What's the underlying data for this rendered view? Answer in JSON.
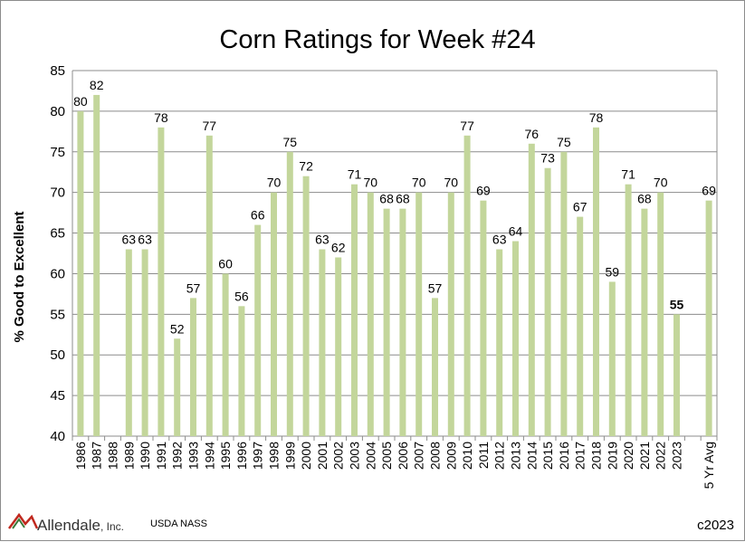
{
  "chart_data": {
    "type": "bar",
    "title": "Corn Ratings for Week #24",
    "xlabel": "",
    "ylabel": "% Good to Excellent",
    "ylim": [
      40,
      85
    ],
    "yticks": [
      40,
      45,
      50,
      55,
      60,
      65,
      70,
      75,
      80,
      85
    ],
    "grid": true,
    "legend": "none",
    "bar_color": "#c3d69b",
    "categories": [
      "1986",
      "1987",
      "1988",
      "1989",
      "1990",
      "1991",
      "1992",
      "1993",
      "1994",
      "1995",
      "1996",
      "1997",
      "1998",
      "1999",
      "2000",
      "2001",
      "2002",
      "2003",
      "2004",
      "2005",
      "2006",
      "2007",
      "2008",
      "2009",
      "2010",
      "2011",
      "2012",
      "2013",
      "2014",
      "2015",
      "2016",
      "2017",
      "2018",
      "2019",
      "2020",
      "2021",
      "2022",
      "2023",
      "",
      "5 Yr Avg"
    ],
    "values": [
      80,
      82,
      null,
      63,
      63,
      78,
      52,
      57,
      77,
      60,
      56,
      66,
      70,
      75,
      72,
      63,
      62,
      71,
      70,
      68,
      68,
      70,
      57,
      70,
      77,
      69,
      63,
      64,
      76,
      73,
      75,
      67,
      78,
      59,
      71,
      68,
      70,
      55,
      null,
      69
    ],
    "highlight": {
      "category": "2023",
      "label_style": "bold"
    }
  },
  "footer": {
    "brand": "Allendale",
    "brand_suffix": ", Inc.",
    "source": "USDA NASS",
    "copyright": "c2023"
  },
  "colors": {
    "logo_red": "#c0281e",
    "logo_green": "#3a7a3a",
    "grid": "#8c8c8c"
  }
}
